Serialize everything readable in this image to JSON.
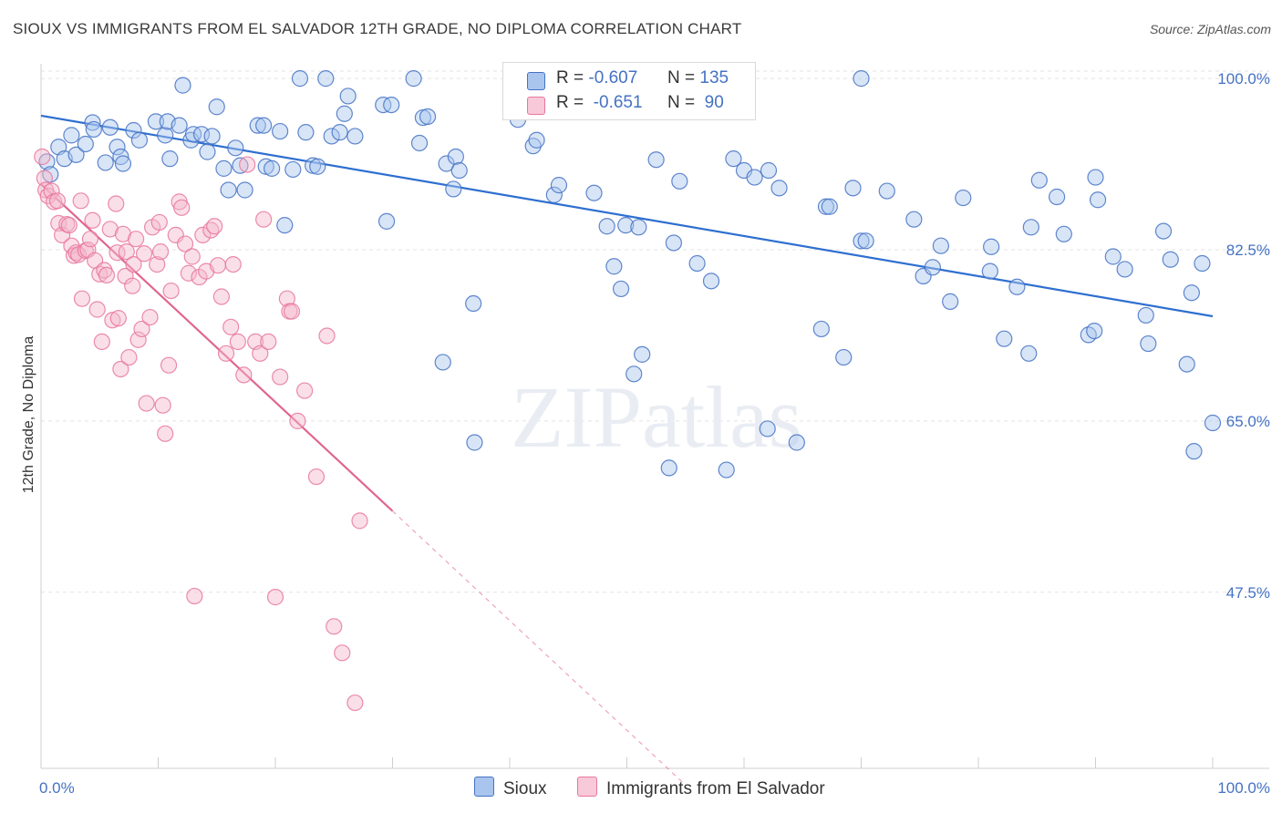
{
  "title": "SIOUX VS IMMIGRANTS FROM EL SALVADOR 12TH GRADE, NO DIPLOMA CORRELATION CHART",
  "source": "Source: ZipAtlas.com",
  "watermark": "ZIPatlas",
  "colors": {
    "blue": "#4472c4",
    "blue_fill": "#a9c5ee",
    "blue_line": "#2e6fd0",
    "pink": "#e8779e",
    "pink_fill": "#f5b8cc",
    "pink_line": "#e06592"
  },
  "legend": {
    "rows": [
      {
        "r_label": "R =",
        "r_value": "-0.607",
        "n_label": "N =",
        "n_value": "135"
      },
      {
        "r_label": "R =",
        "r_value": "-0.651",
        "n_label": "N =",
        "n_value": "90"
      }
    ]
  },
  "bottom_legend": [
    "Sioux",
    "Immigrants from El Salvador"
  ],
  "chart_data": {
    "type": "scatter",
    "title": "SIOUX VS IMMIGRANTS FROM EL SALVADOR 12TH GRADE, NO DIPLOMA CORRELATION CHART",
    "xlabel": "",
    "ylabel": "12th Grade, No Diploma",
    "xlim": [
      0,
      100
    ],
    "ylim": [
      29.5,
      101.5
    ],
    "y_ticks": [
      47.5,
      65.0,
      82.5,
      100.0
    ],
    "y_tick_labels": [
      "47.5%",
      "65.0%",
      "82.5%",
      "100.0%"
    ],
    "x_tick_labels": [
      "0.0%",
      "100.0%"
    ],
    "grid": true,
    "legend_position": "top-center",
    "series": [
      {
        "name": "Sioux",
        "color": "#4472c4",
        "r": -0.607,
        "n": 135,
        "trend": {
          "x": [
            0,
            100
          ],
          "y": [
            96.2,
            75.7
          ]
        },
        "points": [
          [
            0.5,
            91.5
          ],
          [
            0.8,
            90.2
          ],
          [
            1.5,
            93.0
          ],
          [
            2.0,
            91.8
          ],
          [
            2.6,
            94.2
          ],
          [
            3.0,
            92.2
          ],
          [
            3.8,
            93.3
          ],
          [
            4.4,
            95.5
          ],
          [
            4.5,
            94.8
          ],
          [
            5.5,
            91.4
          ],
          [
            5.9,
            95.0
          ],
          [
            6.5,
            93.0
          ],
          [
            6.8,
            92.0
          ],
          [
            7.0,
            91.3
          ],
          [
            7.9,
            94.7
          ],
          [
            8.4,
            93.7
          ],
          [
            9.8,
            95.6
          ],
          [
            10.6,
            94.2
          ],
          [
            10.8,
            95.6
          ],
          [
            11.0,
            91.8
          ],
          [
            11.8,
            95.2
          ],
          [
            12.1,
            99.3
          ],
          [
            12.8,
            93.7
          ],
          [
            13.0,
            94.3
          ],
          [
            13.7,
            94.3
          ],
          [
            14.2,
            92.5
          ],
          [
            14.6,
            94.1
          ],
          [
            15.0,
            97.1
          ],
          [
            15.6,
            90.8
          ],
          [
            16.0,
            88.6
          ],
          [
            16.6,
            92.9
          ],
          [
            17.0,
            91.1
          ],
          [
            17.4,
            88.6
          ],
          [
            18.5,
            95.2
          ],
          [
            19.0,
            95.2
          ],
          [
            19.2,
            91.0
          ],
          [
            19.7,
            90.8
          ],
          [
            20.4,
            94.6
          ],
          [
            20.8,
            85.0
          ],
          [
            21.5,
            90.7
          ],
          [
            22.1,
            100.0
          ],
          [
            22.6,
            94.5
          ],
          [
            23.2,
            91.1
          ],
          [
            23.6,
            91.0
          ],
          [
            24.3,
            100.0
          ],
          [
            24.8,
            94.1
          ],
          [
            25.5,
            94.5
          ],
          [
            25.9,
            96.4
          ],
          [
            26.2,
            98.2
          ],
          [
            26.8,
            94.1
          ],
          [
            29.2,
            97.3
          ],
          [
            29.9,
            97.3
          ],
          [
            29.5,
            85.4
          ],
          [
            31.8,
            100.0
          ],
          [
            32.3,
            93.4
          ],
          [
            32.6,
            96.0
          ],
          [
            33.0,
            96.1
          ],
          [
            34.6,
            91.3
          ],
          [
            35.2,
            88.7
          ],
          [
            35.4,
            92.0
          ],
          [
            35.7,
            90.6
          ],
          [
            34.3,
            71.0
          ],
          [
            36.9,
            77.0
          ],
          [
            37.0,
            62.8
          ],
          [
            40.7,
            95.8
          ],
          [
            42.0,
            93.1
          ],
          [
            42.3,
            93.7
          ],
          [
            43.8,
            88.1
          ],
          [
            44.2,
            89.1
          ],
          [
            45.6,
            100.0
          ],
          [
            47.2,
            88.3
          ],
          [
            48.3,
            84.9
          ],
          [
            48.9,
            80.8
          ],
          [
            49.5,
            78.5
          ],
          [
            49.9,
            85.0
          ],
          [
            51.0,
            84.8
          ],
          [
            50.6,
            69.8
          ],
          [
            51.3,
            71.8
          ],
          [
            52.5,
            91.7
          ],
          [
            53.6,
            60.2
          ],
          [
            54.0,
            83.2
          ],
          [
            54.5,
            89.5
          ],
          [
            56.0,
            81.1
          ],
          [
            57.2,
            79.3
          ],
          [
            59.1,
            91.8
          ],
          [
            60.0,
            90.6
          ],
          [
            60.9,
            89.9
          ],
          [
            62.1,
            90.6
          ],
          [
            63.0,
            88.8
          ],
          [
            62.0,
            64.2
          ],
          [
            64.5,
            62.8
          ],
          [
            66.6,
            74.4
          ],
          [
            67.0,
            86.9
          ],
          [
            67.3,
            86.9
          ],
          [
            68.5,
            71.5
          ],
          [
            69.3,
            88.8
          ],
          [
            70.0,
            83.4
          ],
          [
            70.4,
            83.4
          ],
          [
            72.2,
            88.5
          ],
          [
            74.5,
            85.6
          ],
          [
            75.3,
            79.8
          ],
          [
            76.1,
            80.7
          ],
          [
            77.6,
            77.2
          ],
          [
            78.7,
            87.8
          ],
          [
            81.1,
            82.8
          ],
          [
            82.2,
            73.4
          ],
          [
            83.3,
            78.7
          ],
          [
            84.5,
            84.8
          ],
          [
            84.3,
            71.9
          ],
          [
            85.2,
            89.6
          ],
          [
            86.7,
            87.9
          ],
          [
            87.3,
            84.1
          ],
          [
            89.4,
            73.8
          ],
          [
            89.9,
            74.2
          ],
          [
            90.2,
            87.6
          ],
          [
            91.5,
            81.8
          ],
          [
            92.5,
            80.5
          ],
          [
            94.3,
            75.8
          ],
          [
            94.5,
            72.9
          ],
          [
            95.8,
            84.4
          ],
          [
            96.4,
            81.5
          ],
          [
            97.8,
            70.8
          ],
          [
            98.2,
            78.1
          ],
          [
            98.4,
            61.9
          ],
          [
            99.1,
            81.1
          ],
          [
            100.0,
            64.8
          ],
          [
            90.0,
            89.9
          ],
          [
            81.0,
            80.3
          ],
          [
            76.8,
            82.9
          ],
          [
            58.5,
            60.0
          ],
          [
            70.0,
            100.0
          ]
        ]
      },
      {
        "name": "Immigrants from El Salvador",
        "color": "#e8779e",
        "r": -0.651,
        "n": 90,
        "trend": {
          "x": [
            0,
            30,
            55
          ],
          "y": [
            89.2,
            55.8,
            27.8
          ]
        },
        "points": [
          [
            0.1,
            92.0
          ],
          [
            0.3,
            89.8
          ],
          [
            0.4,
            88.6
          ],
          [
            0.6,
            88.0
          ],
          [
            0.9,
            88.5
          ],
          [
            1.1,
            87.4
          ],
          [
            1.4,
            87.5
          ],
          [
            1.5,
            85.2
          ],
          [
            1.8,
            84.0
          ],
          [
            2.2,
            85.1
          ],
          [
            2.4,
            85.0
          ],
          [
            2.6,
            82.9
          ],
          [
            2.8,
            81.9
          ],
          [
            3.0,
            82.2
          ],
          [
            3.2,
            82.0
          ],
          [
            3.4,
            87.5
          ],
          [
            3.5,
            77.5
          ],
          [
            3.8,
            82.4
          ],
          [
            4.0,
            82.5
          ],
          [
            4.2,
            83.6
          ],
          [
            4.4,
            85.5
          ],
          [
            4.6,
            81.4
          ],
          [
            4.8,
            76.4
          ],
          [
            5.0,
            80.0
          ],
          [
            5.2,
            73.1
          ],
          [
            5.4,
            80.4
          ],
          [
            5.6,
            79.9
          ],
          [
            5.9,
            84.6
          ],
          [
            6.1,
            75.3
          ],
          [
            6.4,
            87.2
          ],
          [
            6.5,
            82.2
          ],
          [
            6.6,
            75.5
          ],
          [
            6.8,
            70.3
          ],
          [
            7.0,
            84.1
          ],
          [
            7.2,
            79.8
          ],
          [
            7.3,
            82.3
          ],
          [
            7.5,
            71.5
          ],
          [
            7.8,
            78.8
          ],
          [
            7.9,
            81.0
          ],
          [
            8.1,
            83.6
          ],
          [
            8.3,
            73.3
          ],
          [
            8.6,
            74.4
          ],
          [
            8.8,
            82.1
          ],
          [
            9.0,
            66.8
          ],
          [
            9.3,
            75.6
          ],
          [
            9.5,
            84.8
          ],
          [
            9.9,
            81.0
          ],
          [
            10.1,
            85.3
          ],
          [
            10.2,
            82.3
          ],
          [
            10.4,
            66.6
          ],
          [
            10.6,
            63.7
          ],
          [
            10.9,
            70.7
          ],
          [
            11.1,
            78.3
          ],
          [
            11.5,
            84.0
          ],
          [
            11.8,
            87.4
          ],
          [
            12.0,
            86.8
          ],
          [
            12.3,
            83.1
          ],
          [
            12.6,
            80.1
          ],
          [
            12.9,
            81.8
          ],
          [
            13.1,
            47.1
          ],
          [
            13.5,
            79.7
          ],
          [
            13.8,
            84.0
          ],
          [
            14.1,
            80.3
          ],
          [
            14.5,
            84.5
          ],
          [
            14.8,
            84.9
          ],
          [
            15.1,
            80.9
          ],
          [
            15.4,
            77.7
          ],
          [
            15.8,
            71.9
          ],
          [
            16.2,
            74.6
          ],
          [
            16.4,
            81.0
          ],
          [
            16.8,
            73.1
          ],
          [
            17.3,
            69.7
          ],
          [
            17.6,
            91.2
          ],
          [
            18.3,
            73.1
          ],
          [
            18.7,
            71.9
          ],
          [
            19.0,
            85.6
          ],
          [
            19.4,
            73.1
          ],
          [
            20.0,
            47.0
          ],
          [
            20.4,
            69.5
          ],
          [
            21.0,
            77.5
          ],
          [
            21.2,
            76.2
          ],
          [
            21.4,
            76.2
          ],
          [
            21.9,
            65.0
          ],
          [
            22.5,
            68.1
          ],
          [
            23.5,
            59.3
          ],
          [
            24.4,
            73.7
          ],
          [
            25.0,
            44.0
          ],
          [
            25.7,
            41.3
          ],
          [
            26.8,
            36.2
          ],
          [
            27.2,
            54.8
          ]
        ]
      }
    ]
  }
}
